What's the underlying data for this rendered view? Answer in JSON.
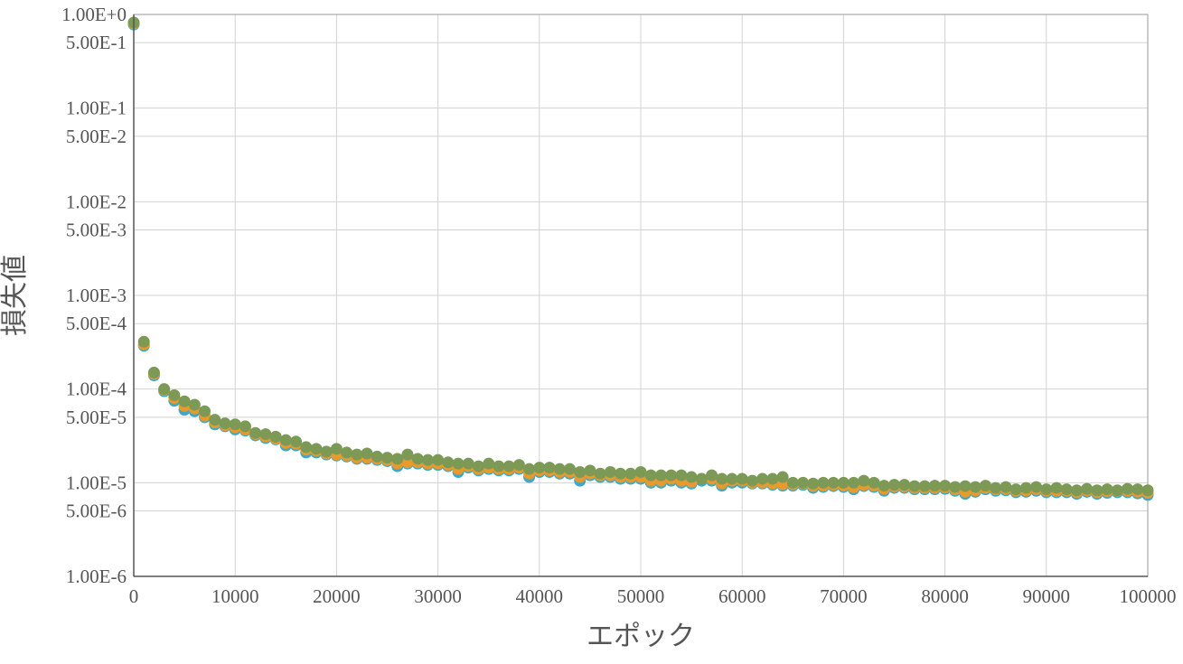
{
  "chart_data": {
    "type": "scatter",
    "title": "",
    "xlabel": "エポック",
    "ylabel": "損失値",
    "xlim": [
      0,
      100000
    ],
    "ylim": [
      1e-06,
      1
    ],
    "yscale": "log",
    "grid": true,
    "legend": "none",
    "x_ticks": [
      {
        "value": 0,
        "label": "0"
      },
      {
        "value": 10000,
        "label": "10000"
      },
      {
        "value": 20000,
        "label": "20000"
      },
      {
        "value": 30000,
        "label": "30000"
      },
      {
        "value": 40000,
        "label": "40000"
      },
      {
        "value": 50000,
        "label": "50000"
      },
      {
        "value": 60000,
        "label": "60000"
      },
      {
        "value": 70000,
        "label": "70000"
      },
      {
        "value": 80000,
        "label": "80000"
      },
      {
        "value": 90000,
        "label": "90000"
      },
      {
        "value": 100000,
        "label": "100000"
      }
    ],
    "y_ticks": [
      {
        "value": 1,
        "label": "1.00E+0"
      },
      {
        "value": 0.5,
        "label": "5.00E-1"
      },
      {
        "value": 0.1,
        "label": "1.00E-1"
      },
      {
        "value": 0.05,
        "label": "5.00E-2"
      },
      {
        "value": 0.01,
        "label": "1.00E-2"
      },
      {
        "value": 0.005,
        "label": "5.00E-3"
      },
      {
        "value": 0.001,
        "label": "1.00E-3"
      },
      {
        "value": 0.0005,
        "label": "5.00E-4"
      },
      {
        "value": 0.0001,
        "label": "1.00E-4"
      },
      {
        "value": 5e-05,
        "label": "5.00E-5"
      },
      {
        "value": 1e-05,
        "label": "1.00E-5"
      },
      {
        "value": 5e-06,
        "label": "5.00E-6"
      },
      {
        "value": 1e-06,
        "label": "1.00E-6"
      }
    ],
    "series": [
      {
        "color": "#3ba9c9",
        "values": [
          0.78,
          0.00029,
          0.00014,
          9.5e-05,
          7.5e-05,
          6e-05,
          5.8e-05,
          5e-05,
          4.2e-05,
          4e-05,
          3.7e-05,
          3.6e-05,
          3.2e-05,
          3e-05,
          2.9e-05,
          2.5e-05,
          2.5e-05,
          2.1e-05,
          2.1e-05,
          2e-05,
          1.95e-05,
          1.9e-05,
          1.8e-05,
          1.8e-05,
          1.75e-05,
          1.7e-05,
          1.5e-05,
          1.6e-05,
          1.6e-05,
          1.55e-05,
          1.55e-05,
          1.5e-05,
          1.3e-05,
          1.45e-05,
          1.35e-05,
          1.4e-05,
          1.35e-05,
          1.35e-05,
          1.4e-05,
          1.15e-05,
          1.3e-05,
          1.3e-05,
          1.25e-05,
          1.25e-05,
          1.05e-05,
          1.2e-05,
          1.15e-05,
          1.15e-05,
          1.1e-05,
          1.1e-05,
          1.1e-05,
          1e-05,
          1e-05,
          1.05e-05,
          1e-05,
          9.8e-06,
          1.05e-05,
          1.05e-05,
          9.3e-06,
          1e-05,
          1e-05,
          9.8e-06,
          9.8e-06,
          9.5e-06,
          9.3e-06,
          9.3e-06,
          9.5e-06,
          8.8e-06,
          9e-06,
          9.2e-06,
          9e-06,
          8.5e-06,
          9.2e-06,
          9e-06,
          8.2e-06,
          8.8e-06,
          8.8e-06,
          8.5e-06,
          8.5e-06,
          8.5e-06,
          8.6e-06,
          8.2e-06,
          7.6e-06,
          8e-06,
          8.5e-06,
          8.2e-06,
          8.3e-06,
          7.9e-06,
          8e-06,
          8.2e-06,
          7.9e-06,
          7.9e-06,
          7.9e-06,
          7.6e-06,
          8e-06,
          7.6e-06,
          7.8e-06,
          7.9e-06,
          7.9e-06,
          7.7e-06,
          7.4e-06
        ]
      },
      {
        "color": "#e89a2c",
        "values": [
          0.8,
          0.0003,
          0.000145,
          9.8e-05,
          8e-05,
          6.6e-05,
          6.2e-05,
          5.2e-05,
          4.4e-05,
          4.1e-05,
          3.9e-05,
          3.7e-05,
          3.3e-05,
          3.1e-05,
          2.95e-05,
          2.65e-05,
          2.6e-05,
          2.25e-05,
          2.2e-05,
          2.05e-05,
          2e-05,
          1.95e-05,
          1.85e-05,
          1.85e-05,
          1.8e-05,
          1.75e-05,
          1.6e-05,
          1.65e-05,
          1.65e-05,
          1.6e-05,
          1.6e-05,
          1.55e-05,
          1.4e-05,
          1.5e-05,
          1.4e-05,
          1.45e-05,
          1.4e-05,
          1.4e-05,
          1.45e-05,
          1.25e-05,
          1.35e-05,
          1.35e-05,
          1.3e-05,
          1.3e-05,
          1.15e-05,
          1.25e-05,
          1.2e-05,
          1.2e-05,
          1.15e-05,
          1.15e-05,
          1.15e-05,
          1.05e-05,
          1.05e-05,
          1.1e-05,
          1.05e-05,
          1.02e-05,
          1.1e-05,
          1.1e-05,
          9.8e-06,
          1.05e-05,
          1.05e-05,
          1e-05,
          1e-05,
          9.8e-06,
          9.6e-06,
          9.6e-06,
          9.8e-06,
          9.2e-06,
          9.3e-06,
          9.5e-06,
          9.3e-06,
          8.9e-06,
          9.5e-06,
          9.3e-06,
          8.6e-06,
          9.1e-06,
          9.1e-06,
          8.8e-06,
          8.8e-06,
          8.8e-06,
          8.9e-06,
          8.5e-06,
          8e-06,
          8.3e-06,
          8.8e-06,
          8.5e-06,
          8.6e-06,
          8.2e-06,
          8.3e-06,
          8.5e-06,
          8.2e-06,
          8.2e-06,
          8.2e-06,
          7.9e-06,
          8.3e-06,
          7.9e-06,
          8.1e-06,
          8.2e-06,
          8.2e-06,
          8e-06,
          7.8e-06
        ]
      },
      {
        "color": "#7c9a55",
        "values": [
          0.82,
          0.00032,
          0.00015,
          0.0001,
          8.6e-05,
          7.4e-05,
          6.8e-05,
          5.8e-05,
          4.7e-05,
          4.3e-05,
          4.2e-05,
          4e-05,
          3.4e-05,
          3.3e-05,
          3.1e-05,
          2.85e-05,
          2.75e-05,
          2.4e-05,
          2.3e-05,
          2.15e-05,
          2.3e-05,
          2.1e-05,
          2e-05,
          2.05e-05,
          1.9e-05,
          1.85e-05,
          1.8e-05,
          2e-05,
          1.8e-05,
          1.75e-05,
          1.75e-05,
          1.65e-05,
          1.6e-05,
          1.6e-05,
          1.5e-05,
          1.6e-05,
          1.5e-05,
          1.5e-05,
          1.55e-05,
          1.4e-05,
          1.45e-05,
          1.45e-05,
          1.4e-05,
          1.4e-05,
          1.3e-05,
          1.35e-05,
          1.25e-05,
          1.3e-05,
          1.25e-05,
          1.25e-05,
          1.3e-05,
          1.2e-05,
          1.2e-05,
          1.2e-05,
          1.2e-05,
          1.15e-05,
          1.1e-05,
          1.2e-05,
          1.1e-05,
          1.1e-05,
          1.1e-05,
          1.05e-05,
          1.1e-05,
          1.1e-05,
          1.15e-05,
          1e-05,
          1e-05,
          9.8e-06,
          1e-05,
          1e-05,
          1e-05,
          1e-05,
          1.05e-05,
          1e-05,
          9.3e-06,
          9.5e-06,
          9.5e-06,
          9.2e-06,
          9.2e-06,
          9.3e-06,
          9.3e-06,
          9e-06,
          9.2e-06,
          9e-06,
          9.3e-06,
          8.8e-06,
          9e-06,
          8.5e-06,
          8.8e-06,
          9e-06,
          8.5e-06,
          8.8e-06,
          8.5e-06,
          8.3e-06,
          8.6e-06,
          8.3e-06,
          8.5e-06,
          8.3e-06,
          8.6e-06,
          8.5e-06,
          8.3e-06
        ]
      }
    ],
    "x_step": 1000
  }
}
